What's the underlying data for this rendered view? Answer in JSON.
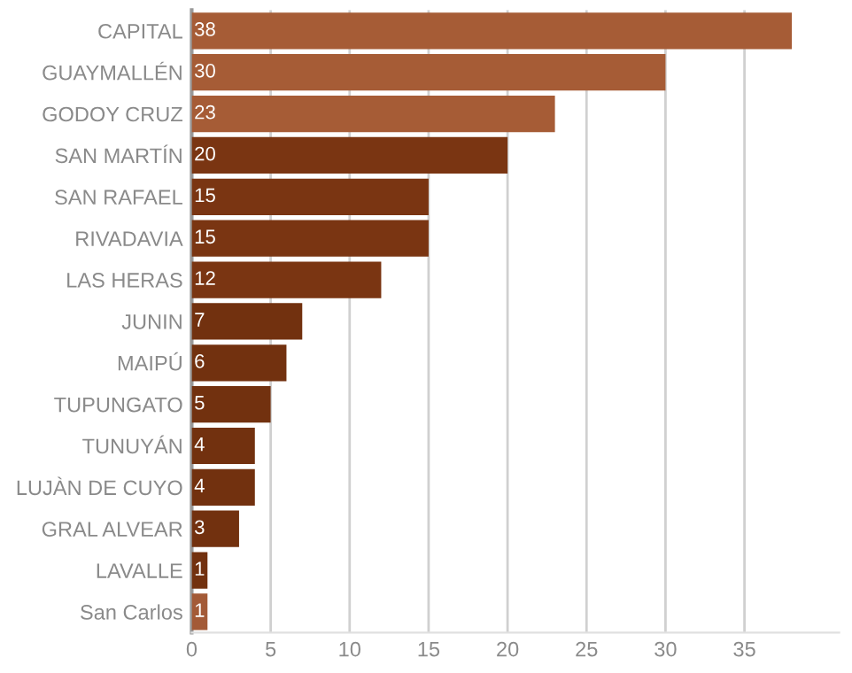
{
  "chart_data": {
    "type": "bar",
    "orientation": "horizontal",
    "categories": [
      "CAPITAL",
      "GUAYMALLÉN",
      "GODOY CRUZ",
      "SAN MARTÍN",
      "SAN RAFAEL",
      "RIVADAVIA",
      "LAS HERAS",
      "JUNIN",
      "MAIPÚ",
      "TUPUNGATO",
      "TUNUYÁN",
      "LUJÀN DE CUYO",
      "GRAL ALVEAR",
      "LAVALLE",
      "San Carlos"
    ],
    "values": [
      38,
      30,
      23,
      20,
      15,
      15,
      12,
      7,
      6,
      5,
      4,
      4,
      3,
      1,
      1
    ],
    "colors": [
      "#a65c36",
      "#a65c36",
      "#a65c36",
      "#7a3512",
      "#7a3512",
      "#7a3512",
      "#7a3512",
      "#72310f",
      "#72310f",
      "#72310f",
      "#72310f",
      "#72310f",
      "#72310f",
      "#72310f",
      "#a35a37"
    ],
    "xlim": [
      0,
      41
    ],
    "xticks": [
      0,
      5,
      10,
      15,
      20,
      25,
      30,
      35
    ],
    "grid": "x",
    "data_labels": true
  }
}
